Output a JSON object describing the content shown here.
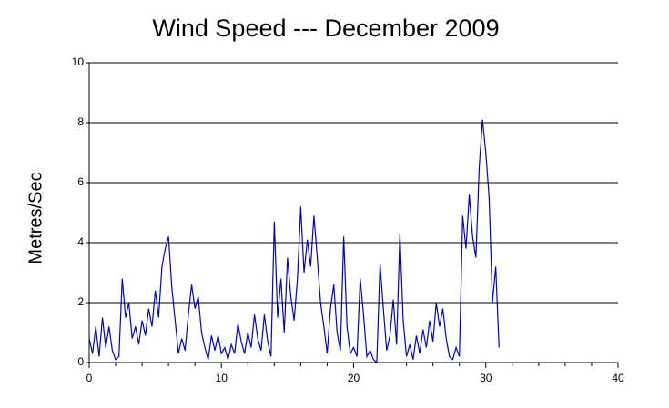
{
  "chart_data": {
    "type": "line",
    "title": "Wind Speed --- December 2009",
    "y_label": "Metres/Sec",
    "color": "#0000cc",
    "grid": true,
    "xlim": [
      0,
      40
    ],
    "xticks": [
      0,
      10,
      20,
      30,
      40
    ],
    "xminor": [
      2,
      4,
      6,
      8,
      12,
      14,
      16,
      18,
      22,
      24,
      26,
      28,
      32,
      34,
      36,
      38
    ],
    "ylim": [
      0,
      10
    ],
    "yticks": [
      0,
      2,
      4,
      6,
      8,
      10
    ],
    "x": [
      0,
      0.25,
      0.5,
      0.75,
      1,
      1.25,
      1.5,
      1.75,
      2,
      2.25,
      2.5,
      2.75,
      3,
      3.25,
      3.5,
      3.75,
      4,
      4.25,
      4.5,
      4.75,
      5,
      5.25,
      5.5,
      5.75,
      6,
      6.25,
      6.5,
      6.75,
      7,
      7.25,
      7.5,
      7.75,
      8,
      8.25,
      8.5,
      8.75,
      9,
      9.25,
      9.5,
      9.75,
      10,
      10.25,
      10.5,
      10.75,
      11,
      11.25,
      11.5,
      11.75,
      12,
      12.25,
      12.5,
      12.75,
      13,
      13.25,
      13.5,
      13.75,
      14,
      14.25,
      14.5,
      14.75,
      15,
      15.25,
      15.5,
      15.75,
      16,
      16.25,
      16.5,
      16.75,
      17,
      17.25,
      17.5,
      17.75,
      18,
      18.25,
      18.5,
      18.75,
      19,
      19.25,
      19.5,
      19.75,
      20,
      20.25,
      20.5,
      20.75,
      21,
      21.25,
      21.5,
      21.75,
      22,
      22.25,
      22.5,
      22.75,
      23,
      23.25,
      23.5,
      23.75,
      24,
      24.25,
      24.5,
      24.75,
      25,
      25.25,
      25.5,
      25.75,
      26,
      26.25,
      26.5,
      26.75,
      27,
      27.25,
      27.5,
      27.75,
      28,
      28.25,
      28.5,
      28.75,
      29,
      29.25,
      29.5,
      29.75,
      30,
      30.25,
      30.5,
      30.75,
      31
    ],
    "values": [
      0.8,
      0.3,
      1.2,
      0.2,
      1.5,
      0.5,
      1.2,
      0.4,
      0.1,
      0.2,
      2.8,
      1.5,
      2.0,
      0.8,
      1.2,
      0.6,
      1.4,
      0.9,
      1.8,
      1.2,
      2.4,
      1.5,
      3.2,
      3.8,
      4.2,
      2.5,
      1.4,
      0.3,
      0.8,
      0.4,
      1.6,
      2.6,
      1.8,
      2.2,
      1.0,
      0.5,
      0.1,
      0.9,
      0.4,
      0.9,
      0.3,
      0.5,
      0.1,
      0.6,
      0.3,
      1.3,
      0.7,
      0.3,
      1.0,
      0.5,
      1.6,
      0.8,
      0.4,
      1.6,
      0.7,
      0.2,
      4.7,
      1.5,
      2.8,
      1.0,
      3.5,
      2.2,
      1.4,
      2.8,
      5.2,
      3.0,
      4.1,
      3.2,
      4.9,
      3.5,
      2.0,
      1.2,
      0.3,
      1.8,
      2.6,
      1.0,
      0.4,
      4.2,
      1.2,
      0.3,
      0.5,
      0.2,
      2.8,
      1.6,
      0.2,
      0.4,
      0.1,
      0.0,
      3.3,
      1.8,
      0.4,
      0.9,
      2.1,
      0.6,
      4.3,
      1.4,
      0.2,
      0.6,
      0.1,
      0.9,
      0.3,
      1.1,
      0.5,
      1.4,
      0.7,
      2.0,
      1.2,
      1.8,
      0.8,
      0.2,
      0.1,
      0.5,
      0.2,
      4.9,
      3.8,
      5.6,
      4.2,
      3.5,
      6.5,
      8.1,
      7.0,
      5.5,
      2.0,
      3.2,
      0.5
    ]
  }
}
